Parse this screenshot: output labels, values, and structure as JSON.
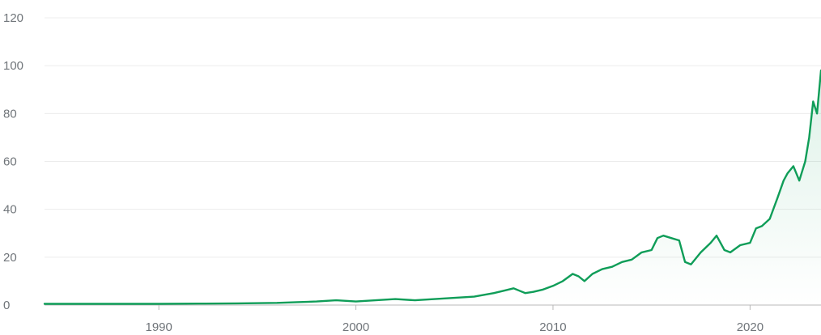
{
  "chart_data": {
    "type": "line",
    "title": "",
    "xlabel": "",
    "ylabel": "",
    "xlim": [
      1984.2,
      2023.6
    ],
    "ylim": [
      0,
      120
    ],
    "grid": true,
    "line_color": "#0f9d58",
    "x_ticks": [
      {
        "value": 1990,
        "label": "1990"
      },
      {
        "value": 2000,
        "label": "2000"
      },
      {
        "value": 2010,
        "label": "2010"
      },
      {
        "value": 2020,
        "label": "2020"
      }
    ],
    "y_ticks": [
      {
        "value": 0,
        "label": "0"
      },
      {
        "value": 20,
        "label": "20"
      },
      {
        "value": 40,
        "label": "40"
      },
      {
        "value": 60,
        "label": "60"
      },
      {
        "value": 80,
        "label": "80"
      },
      {
        "value": 100,
        "label": "100"
      },
      {
        "value": 120,
        "label": "120"
      }
    ],
    "series": [
      {
        "x": [
          1984.2,
          1986,
          1988,
          1990,
          1992,
          1994,
          1996,
          1997,
          1998,
          1999,
          2000,
          2001,
          2002,
          2003,
          2004,
          2005,
          2006,
          2007,
          2007.5,
          2008,
          2008.3,
          2008.6,
          2009,
          2009.5,
          2010,
          2010.5,
          2011,
          2011.3,
          2011.6,
          2012,
          2012.5,
          2013,
          2013.5,
          2014,
          2014.5,
          2015,
          2015.3,
          2015.6,
          2016,
          2016.4,
          2016.7,
          2017,
          2017.5,
          2018,
          2018.3,
          2018.7,
          2019,
          2019.5,
          2020,
          2020.3,
          2020.6,
          2021,
          2021.4,
          2021.7,
          2021.9,
          2022.2,
          2022.5,
          2022.8,
          2023,
          2023.2,
          2023.4,
          2023.6
        ],
        "values": [
          0.5,
          0.5,
          0.5,
          0.5,
          0.6,
          0.7,
          0.9,
          1.2,
          1.5,
          2.0,
          1.5,
          2.0,
          2.5,
          2.0,
          2.5,
          3.0,
          3.5,
          5.0,
          6.0,
          7.0,
          6.0,
          5.0,
          5.5,
          6.5,
          8.0,
          10.0,
          13.0,
          12.0,
          10.0,
          13.0,
          15.0,
          16.0,
          18.0,
          19.0,
          22.0,
          23.0,
          28.0,
          29.0,
          28.0,
          27.0,
          18.0,
          17.0,
          22.0,
          26.0,
          29.0,
          23.0,
          22.0,
          25.0,
          26.0,
          32.0,
          33.0,
          36.0,
          45.0,
          52.0,
          55.0,
          58.0,
          52.0,
          60.0,
          70.0,
          85.0,
          80.0,
          98.0
        ]
      }
    ]
  }
}
